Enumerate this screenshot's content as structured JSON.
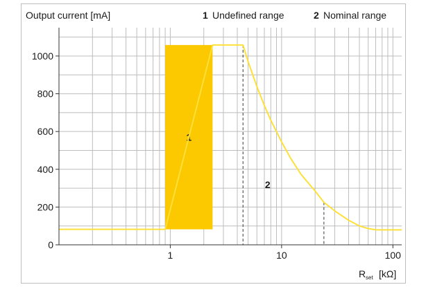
{
  "chart_data": {
    "type": "line",
    "ylabel": "Output current [mA]",
    "xlabel_main": "R",
    "xlabel_sub": "set",
    "xlabel_unit": "[kΩ]",
    "x_scale": "log",
    "xlim": [
      0.1,
      120
    ],
    "ylim": [
      0,
      1150
    ],
    "x_ticks": [
      1,
      10,
      100
    ],
    "x_tick_labels": [
      "1",
      "10",
      "100"
    ],
    "y_ticks": [
      0,
      200,
      400,
      600,
      800,
      1000
    ],
    "y_tick_labels": [
      "0",
      "200",
      "400",
      "600",
      "800",
      "1000"
    ],
    "grid": true,
    "legend": [
      {
        "num": "1",
        "label": "Undefined range"
      },
      {
        "num": "2",
        "label": "Nominal range"
      }
    ],
    "series": [
      {
        "x": [
          0.1,
          0.9,
          2.4,
          4.5,
          5,
          6,
          7,
          8,
          10,
          12,
          15,
          20,
          24,
          30,
          40,
          50,
          60,
          70,
          80,
          100,
          120
        ],
        "y": [
          82,
          82,
          1058,
          1058,
          970,
          838,
          738,
          660,
          545,
          460,
          372,
          285,
          225,
          180,
          130,
          100,
          86,
          80,
          79,
          79,
          79
        ]
      }
    ],
    "regions": [
      {
        "label": "1",
        "x_start": 0.9,
        "x_end": 2.4,
        "y_start": 82,
        "y_end": 1058,
        "color": "#fcc800"
      }
    ],
    "annotations": [
      {
        "label": "2",
        "x": 7.5,
        "y": 300
      }
    ],
    "dashed_lines": [
      {
        "x": 4.5,
        "y": 1058
      },
      {
        "x": 24,
        "y": 225
      }
    ],
    "colors": {
      "line": "#fde03a",
      "region": "#fcc800",
      "grid": "#bdbdbd",
      "dashed": "#333333"
    }
  }
}
